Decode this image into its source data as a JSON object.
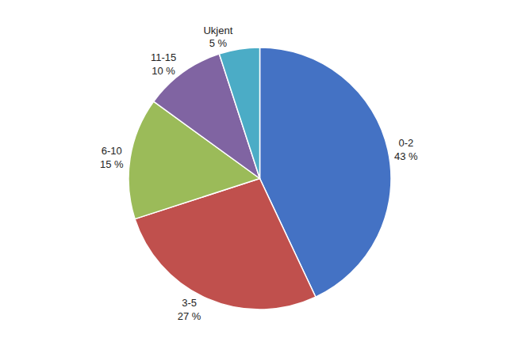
{
  "chart_data": {
    "type": "pie",
    "categories": [
      "0-2",
      "3-5",
      "6-10",
      "11-15",
      "Ukjent"
    ],
    "values": [
      43,
      27,
      15,
      10,
      5
    ],
    "value_labels": [
      "43 %",
      "27 %",
      "15 %",
      "10 %",
      "5 %"
    ],
    "colors": [
      "#4472C4",
      "#C0504D",
      "#9BBB59",
      "#8064A2",
      "#4BACC6"
    ],
    "data_labels": true
  }
}
